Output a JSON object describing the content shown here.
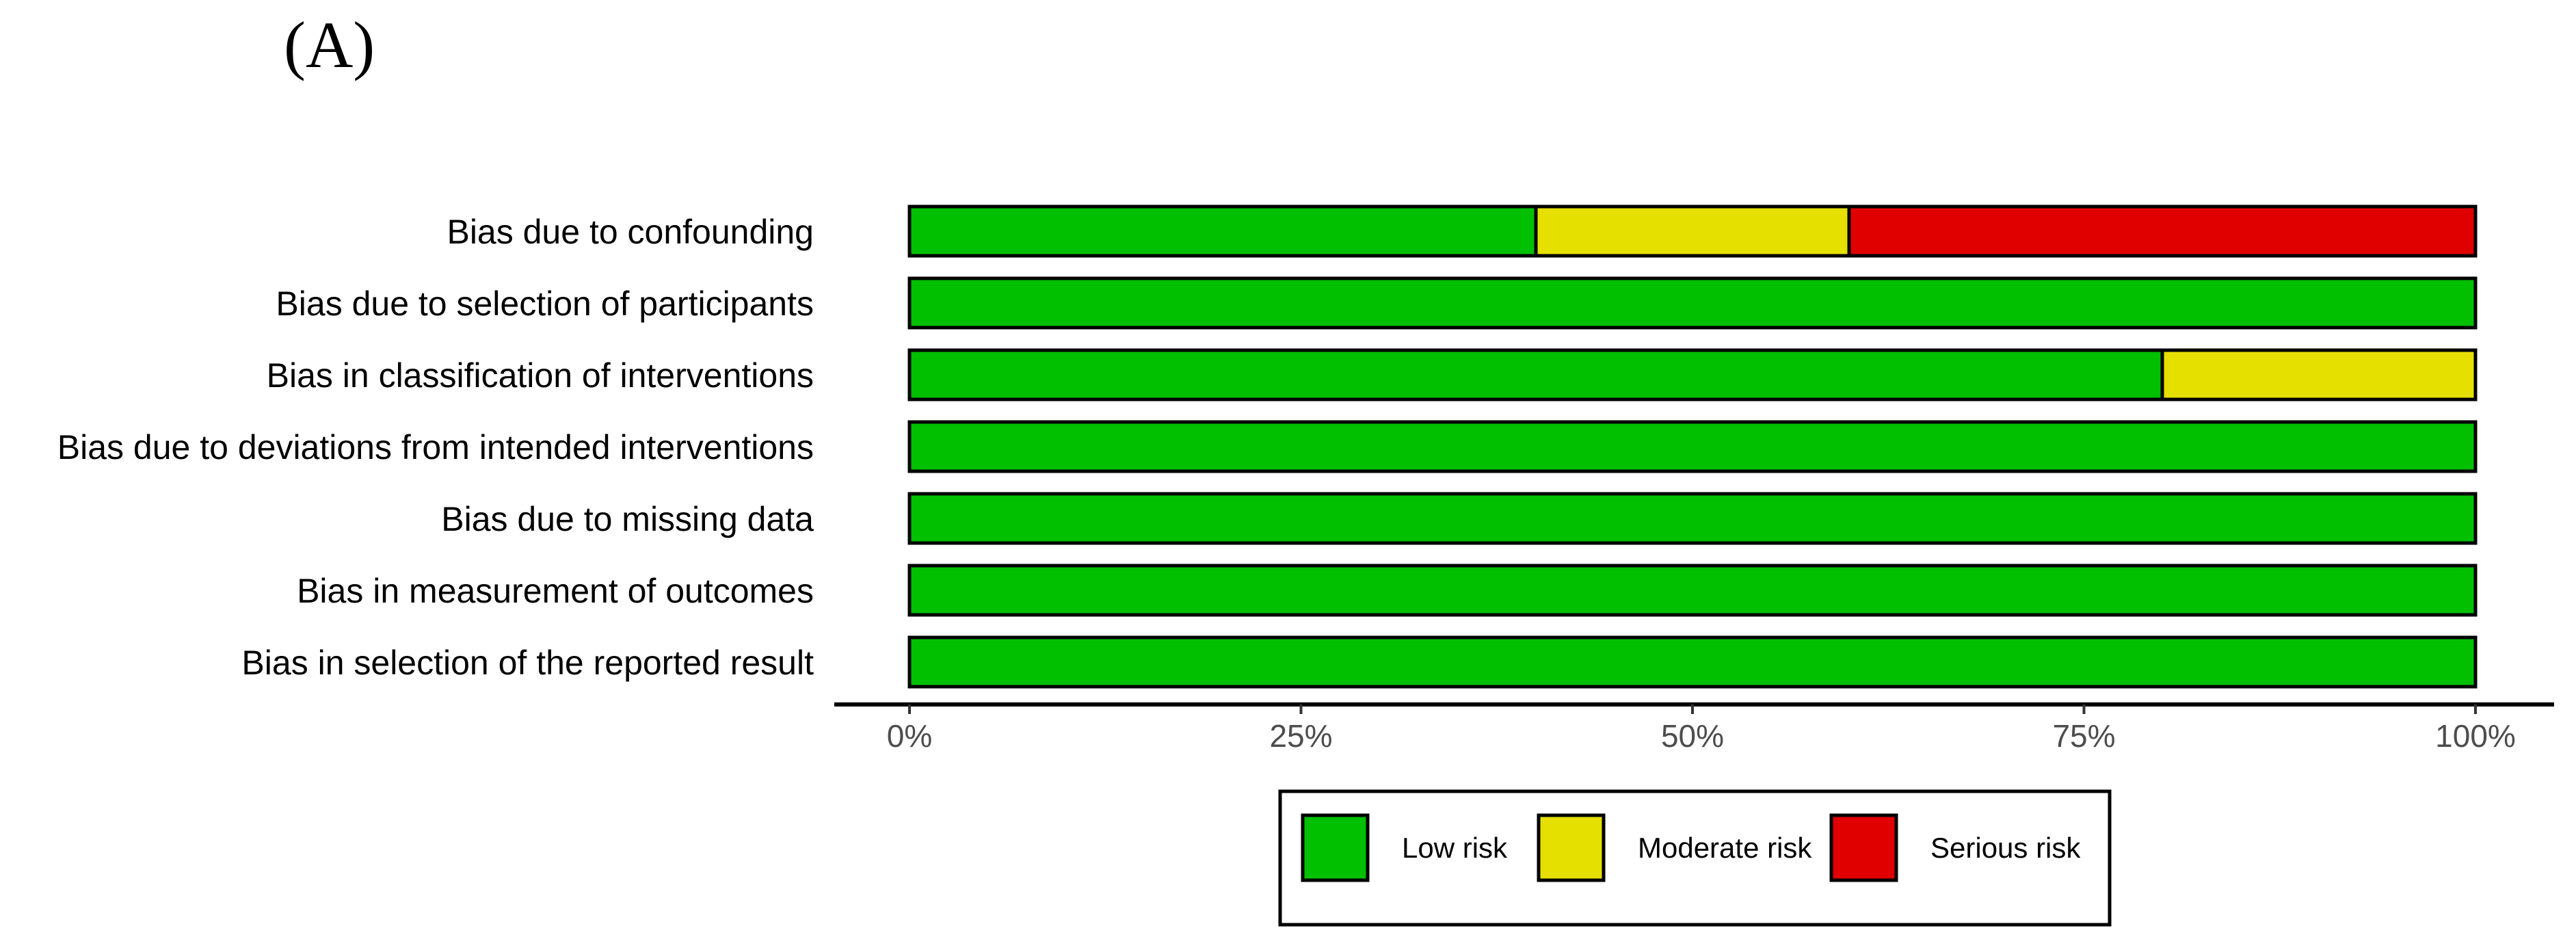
{
  "panel_label": "(A)",
  "colors": {
    "low": "#00c000",
    "moderate": "#e5e000",
    "serious": "#e00000",
    "outline": "#000000",
    "tick_text": "#4d4d4d"
  },
  "chart_data": {
    "type": "bar",
    "orientation": "horizontal",
    "stacked": true,
    "title": "",
    "xlabel": "",
    "ylabel": "",
    "xlim": [
      0,
      100
    ],
    "x_ticks": [
      0,
      25,
      50,
      75,
      100
    ],
    "x_tick_labels": [
      "0%",
      "25%",
      "50%",
      "75%",
      "100%"
    ],
    "categories": [
      "Bias due to confounding",
      "Bias due to selection of participants",
      "Bias in classification of interventions",
      "Bias due to deviations from intended interventions",
      "Bias due to missing data",
      "Bias in measurement of outcomes",
      "Bias in selection of the reported result"
    ],
    "series": [
      {
        "name": "Low risk",
        "color": "#00c000",
        "values": [
          40,
          100,
          80,
          100,
          100,
          100,
          100
        ]
      },
      {
        "name": "Moderate risk",
        "color": "#e5e000",
        "values": [
          20,
          0,
          20,
          0,
          0,
          0,
          0
        ]
      },
      {
        "name": "Serious risk",
        "color": "#e00000",
        "values": [
          40,
          0,
          0,
          0,
          0,
          0,
          0
        ]
      }
    ],
    "grid": false,
    "legend_position": "bottom"
  }
}
